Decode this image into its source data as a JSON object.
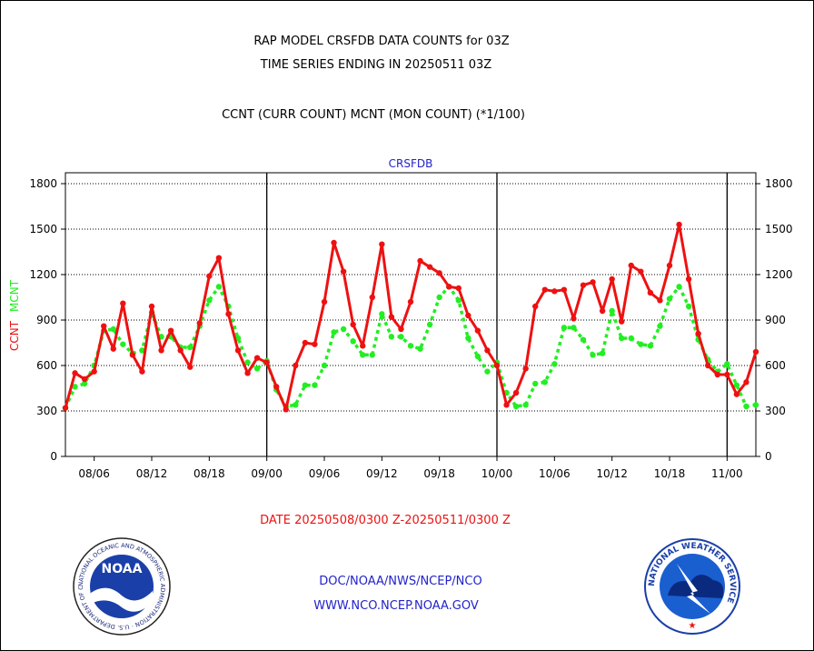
{
  "header": {
    "title_line1": "RAP MODEL CRSFDB DATA COUNTS for 03Z",
    "title_line2": "TIME SERIES ENDING IN 20250511 03Z",
    "subtitle": "CCNT (CURR COUNT) MCNT (MON COUNT) (*1/100)"
  },
  "footer": {
    "date_range": "DATE 20250508/0300 Z-20250511/0300 Z",
    "org_path": "DOC/NOAA/NWS/NCEP/NCO",
    "website": "WWW.NCO.NCEP.NOAA.GOV"
  },
  "logos": {
    "noaa_text": "NOAA",
    "noaa_ring_text": "NATIONAL OCEANIC AND ATMOSPHERIC ADMINISTRATION · U.S. DEPARTMENT OF COMMERCE ·",
    "nws_ring_text": "NATIONAL WEATHER SERVICE"
  },
  "colors": {
    "ccnt": "#ee1111",
    "mcnt": "#22ee22",
    "chart_label": "#2222cc",
    "footer_red": "#ee1111",
    "footer_blue": "#2222cc"
  },
  "chart_data": {
    "type": "line",
    "title": "CRSFDB",
    "ylabel_left": [
      "CCNT",
      "MCNT"
    ],
    "ylim": [
      0,
      1800
    ],
    "yticks": [
      0,
      300,
      600,
      900,
      1200,
      1500,
      1800
    ],
    "ytick_labels": [
      "0",
      "300",
      "600",
      "900",
      "1200",
      "1500",
      "1800"
    ],
    "xtick_labels": [
      "08/06",
      "08/12",
      "08/18",
      "09/00",
      "09/06",
      "09/12",
      "09/18",
      "10/00",
      "10/06",
      "10/12",
      "10/18",
      "11/00"
    ],
    "xticks": [
      3,
      9,
      15,
      21,
      27,
      33,
      39,
      45,
      51,
      57,
      63,
      69
    ],
    "day_boundaries": [
      21,
      45,
      69
    ],
    "x_start": 0,
    "x_end": 72,
    "grid": "horizontal dotted",
    "series": [
      {
        "name": "CCNT",
        "color": "#ee1111",
        "style": "solid",
        "x": [
          0,
          1,
          2,
          3,
          4,
          5,
          6,
          7,
          8,
          9,
          10,
          11,
          12,
          13,
          14,
          15,
          16,
          17,
          18,
          19,
          20,
          21,
          22,
          23,
          24,
          25,
          26,
          27,
          28,
          29,
          30,
          31,
          32,
          33,
          34,
          35,
          36,
          37,
          38,
          39,
          40,
          41,
          42,
          43,
          44,
          45,
          46,
          47,
          48,
          49,
          50,
          51,
          52,
          53,
          54,
          55,
          56,
          57,
          58,
          59,
          60,
          61,
          62,
          63,
          64,
          65,
          66,
          67,
          68,
          69,
          70,
          71,
          72
        ],
        "values": [
          320,
          550,
          510,
          560,
          860,
          710,
          1010,
          670,
          560,
          990,
          700,
          830,
          700,
          590,
          880,
          1190,
          1310,
          940,
          700,
          550,
          650,
          620,
          460,
          310,
          600,
          750,
          740,
          1020,
          1410,
          1220,
          870,
          730,
          1050,
          1400,
          920,
          840,
          1020,
          1290,
          1250,
          1210,
          1120,
          1110,
          930,
          830,
          700,
          600,
          340,
          420,
          580,
          990,
          1100,
          1090,
          1100,
          910,
          1130,
          1150,
          960,
          1170,
          890,
          1260,
          1220,
          1080,
          1030,
          1260,
          1530,
          1170,
          810,
          600,
          540,
          540,
          410,
          490,
          690
        ]
      },
      {
        "name": "MCNT",
        "color": "#22ee22",
        "style": "dotted",
        "x": [
          0,
          1,
          2,
          3,
          4,
          5,
          6,
          7,
          8,
          9,
          10,
          11,
          12,
          13,
          14,
          15,
          16,
          17,
          18,
          19,
          20,
          21,
          22,
          23,
          24,
          25,
          26,
          27,
          28,
          29,
          30,
          31,
          32,
          33,
          34,
          35,
          36,
          37,
          38,
          39,
          40,
          41,
          42,
          43,
          44,
          45,
          46,
          47,
          48,
          49,
          50,
          51,
          52,
          53,
          54,
          55,
          56,
          57,
          58,
          59,
          60,
          61,
          62,
          63,
          64,
          65,
          66,
          67,
          68,
          69,
          70,
          71,
          72
        ],
        "values": [
          320,
          460,
          480,
          600,
          830,
          840,
          740,
          680,
          700,
          950,
          790,
          790,
          720,
          720,
          860,
          1030,
          1120,
          990,
          780,
          620,
          580,
          630,
          440,
          330,
          340,
          470,
          470,
          600,
          820,
          840,
          760,
          670,
          670,
          940,
          790,
          790,
          730,
          710,
          870,
          1050,
          1120,
          1030,
          780,
          660,
          560,
          620,
          420,
          330,
          340,
          480,
          490,
          610,
          850,
          850,
          770,
          670,
          680,
          960,
          780,
          780,
          740,
          730,
          860,
          1040,
          1120,
          990,
          770,
          640,
          560,
          610,
          470,
          330,
          340
        ]
      }
    ]
  }
}
